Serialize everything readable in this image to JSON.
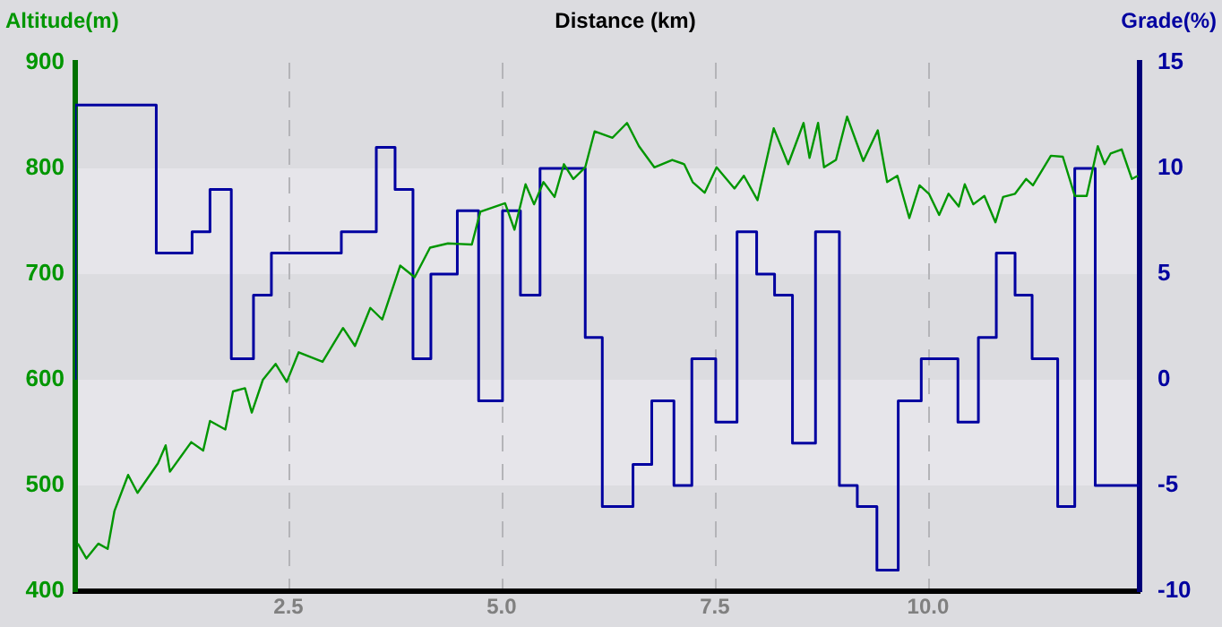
{
  "chart_data": {
    "type": "line",
    "xlabel": "Distance (km)",
    "ylabel": "Altitude(m)",
    "y2label": "Grade(%)",
    "xlim": [
      0,
      12.48
    ],
    "xticks": [
      2.5,
      {
        "value": 5,
        "label": "5.0"
      },
      7.5,
      {
        "value": 10,
        "label": "10.0"
      }
    ],
    "ylim": [
      400,
      900
    ],
    "yticks": [
      400,
      500,
      600,
      700,
      800,
      900
    ],
    "y2lim": [
      -10,
      15
    ],
    "y2ticks": [
      -10,
      -5,
      0,
      5,
      10,
      15
    ],
    "grid": "x",
    "marker": "none",
    "legend": false,
    "bands": [
      {
        "axis": "y",
        "from": 500,
        "to": 600,
        "color": "#e6e5ea"
      },
      {
        "axis": "y",
        "from": 700,
        "to": 800,
        "color": "#e6e5ea"
      }
    ],
    "series": [
      {
        "color": "#009600",
        "x": [
          0.03,
          0.13,
          0.27,
          0.38,
          0.46,
          0.62,
          0.73,
          0.97,
          1.06,
          1.11,
          1.36,
          1.5,
          1.58,
          1.76,
          1.85,
          1.99,
          2.07,
          2.2,
          2.35,
          2.48,
          2.62,
          2.9,
          3.14,
          3.28,
          3.46,
          3.6,
          3.81,
          3.98,
          4.16,
          4.37,
          4.65,
          4.75,
          5.04,
          5.15,
          5.28,
          5.38,
          5.49,
          5.62,
          5.73,
          5.84,
          5.98,
          6.09,
          6.3,
          6.47,
          6.61,
          6.79,
          7,
          7.14,
          7.24,
          7.38,
          7.52,
          7.73,
          7.84,
          8,
          8.19,
          8.36,
          8.54,
          8.61,
          8.71,
          8.78,
          8.92,
          9.05,
          9.24,
          9.41,
          9.52,
          9.64,
          9.78,
          9.9,
          10.01,
          10.13,
          10.24,
          10.36,
          10.43,
          10.53,
          10.66,
          10.79,
          10.88,
          11.02,
          11.15,
          11.23,
          11.44,
          11.58,
          11.72,
          11.86,
          11.99,
          12.07,
          12.14,
          12.27,
          12.39,
          12.46
        ],
        "values": [
          445,
          431,
          445,
          440,
          476,
          510,
          493,
          521,
          538,
          513,
          541,
          533,
          561,
          553,
          589,
          592,
          569,
          600,
          615,
          598,
          626,
          617,
          649,
          632,
          668,
          657,
          708,
          697,
          725,
          729,
          728,
          759,
          767,
          742,
          785,
          766,
          787,
          773,
          804,
          790,
          801,
          835,
          829,
          843,
          821,
          801,
          808,
          804,
          787,
          777,
          801,
          781,
          793,
          770,
          838,
          804,
          843,
          810,
          843,
          801,
          808,
          849,
          807,
          836,
          787,
          793,
          753,
          784,
          776,
          756,
          776,
          764,
          785,
          766,
          774,
          749,
          773,
          776,
          790,
          784,
          812,
          811,
          774,
          774,
          821,
          804,
          814,
          818,
          790,
          793
        ]
      },
      {
        "type": "step",
        "axis": "y2",
        "color": "#0000a0",
        "x": [
          0,
          0.95,
          1.37,
          1.58,
          1.83,
          2.09,
          2.3,
          3.12,
          3.53,
          3.75,
          3.96,
          4.17,
          4.48,
          4.73,
          5.01,
          5.22,
          5.45,
          5.98,
          6.18,
          6.54,
          6.76,
          7.02,
          7.23,
          7.51,
          7.76,
          7.99,
          8.2,
          8.41,
          8.68,
          8.96,
          9.17,
          9.4,
          9.65,
          9.92,
          10.35,
          10.59,
          10.8,
          11.02,
          11.22,
          11.52,
          11.72,
          11.96,
          12.21,
          12.48
        ],
        "values": [
          0,
          13,
          6,
          7,
          9,
          1,
          4,
          6,
          7,
          11,
          9,
          1,
          5,
          8,
          -1,
          8,
          4,
          10,
          2,
          -6,
          -4,
          -1,
          -5,
          1,
          -2,
          7,
          5,
          4,
          -3,
          7,
          -5,
          -6,
          -9,
          -1,
          1,
          -2,
          2,
          6,
          4,
          1,
          -6,
          10,
          -5,
          -5
        ]
      }
    ]
  }
}
